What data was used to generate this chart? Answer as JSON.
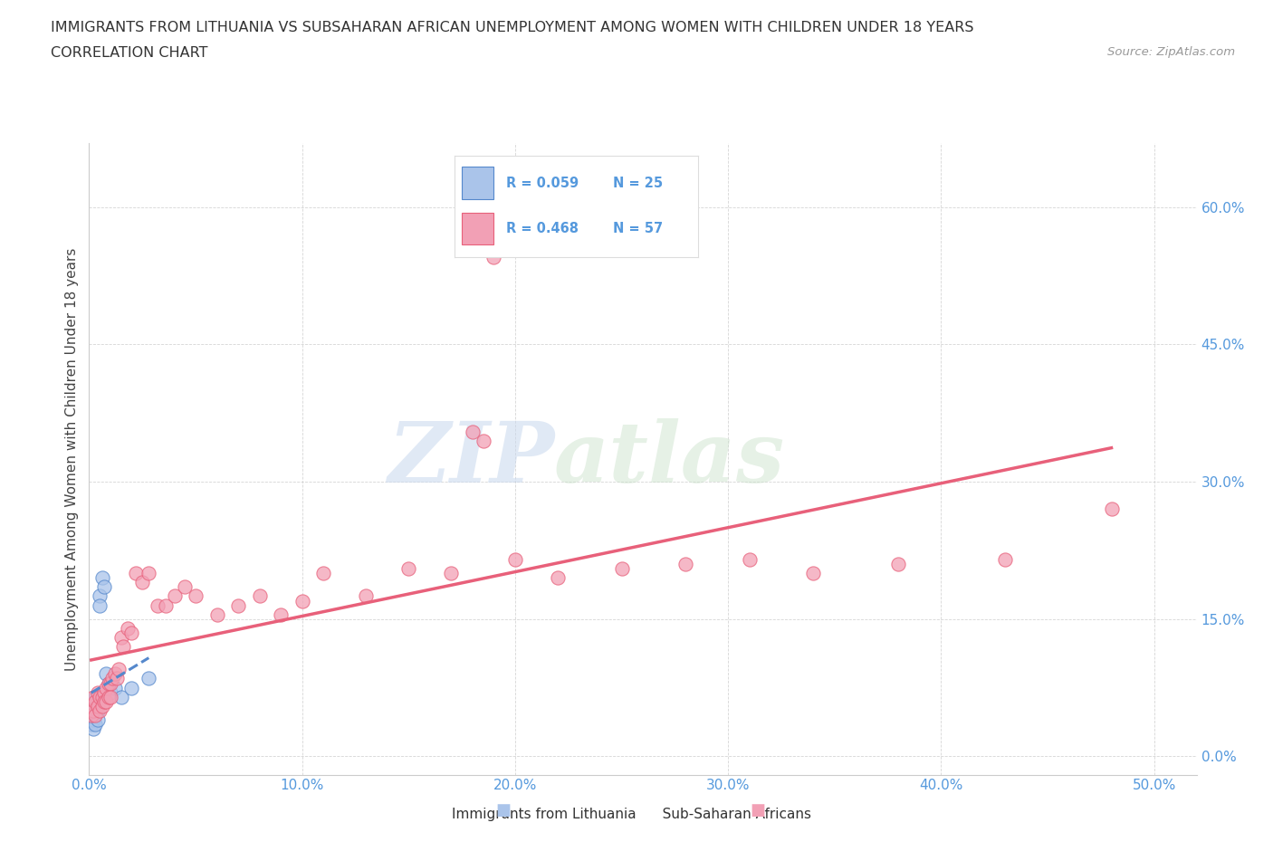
{
  "title": "IMMIGRANTS FROM LITHUANIA VS SUBSAHARAN AFRICAN UNEMPLOYMENT AMONG WOMEN WITH CHILDREN UNDER 18 YEARS",
  "subtitle": "CORRELATION CHART",
  "source": "Source: ZipAtlas.com",
  "ylabel": "Unemployment Among Women with Children Under 18 years",
  "xlim": [
    0.0,
    0.52
  ],
  "ylim": [
    -0.02,
    0.67
  ],
  "xticks": [
    0.0,
    0.1,
    0.2,
    0.3,
    0.4,
    0.5
  ],
  "ytick_positions": [
    0.0,
    0.15,
    0.3,
    0.45,
    0.6
  ],
  "ytick_labels": [
    "0.0%",
    "15.0%",
    "30.0%",
    "45.0%",
    "60.0%"
  ],
  "xtick_labels": [
    "0.0%",
    "10.0%",
    "20.0%",
    "30.0%",
    "40.0%",
    "50.0%"
  ],
  "watermark_zip": "ZIP",
  "watermark_atlas": "atlas",
  "legend_r1": "R = 0.059",
  "legend_n1": "N = 25",
  "legend_r2": "R = 0.468",
  "legend_n2": "N = 57",
  "color_blue": "#aac4ea",
  "color_pink": "#f2a0b5",
  "color_blue_dark": "#5588cc",
  "color_pink_dark": "#e8607a",
  "color_axis": "#5599dd",
  "background_color": "#ffffff",
  "lithuania_x": [
    0.001,
    0.001,
    0.001,
    0.002,
    0.002,
    0.002,
    0.002,
    0.003,
    0.003,
    0.003,
    0.003,
    0.004,
    0.004,
    0.004,
    0.005,
    0.005,
    0.006,
    0.007,
    0.008,
    0.009,
    0.01,
    0.012,
    0.015,
    0.02,
    0.028
  ],
  "lithuania_y": [
    0.055,
    0.045,
    0.035,
    0.06,
    0.05,
    0.04,
    0.03,
    0.065,
    0.055,
    0.045,
    0.035,
    0.06,
    0.05,
    0.04,
    0.175,
    0.165,
    0.195,
    0.185,
    0.09,
    0.08,
    0.07,
    0.075,
    0.065,
    0.075,
    0.085
  ],
  "subsaharan_x": [
    0.001,
    0.001,
    0.002,
    0.002,
    0.003,
    0.003,
    0.004,
    0.004,
    0.005,
    0.005,
    0.006,
    0.006,
    0.007,
    0.007,
    0.008,
    0.008,
    0.009,
    0.009,
    0.01,
    0.01,
    0.011,
    0.012,
    0.013,
    0.014,
    0.015,
    0.016,
    0.018,
    0.02,
    0.022,
    0.025,
    0.028,
    0.032,
    0.036,
    0.04,
    0.045,
    0.05,
    0.06,
    0.07,
    0.08,
    0.09,
    0.1,
    0.11,
    0.13,
    0.15,
    0.17,
    0.2,
    0.22,
    0.25,
    0.28,
    0.31,
    0.34,
    0.38,
    0.43,
    0.48,
    0.18,
    0.185,
    0.19
  ],
  "subsaharan_y": [
    0.055,
    0.045,
    0.065,
    0.05,
    0.06,
    0.045,
    0.07,
    0.055,
    0.065,
    0.05,
    0.065,
    0.055,
    0.07,
    0.06,
    0.075,
    0.06,
    0.08,
    0.065,
    0.08,
    0.065,
    0.085,
    0.09,
    0.085,
    0.095,
    0.13,
    0.12,
    0.14,
    0.135,
    0.2,
    0.19,
    0.2,
    0.165,
    0.165,
    0.175,
    0.185,
    0.175,
    0.155,
    0.165,
    0.175,
    0.155,
    0.17,
    0.2,
    0.175,
    0.205,
    0.2,
    0.215,
    0.195,
    0.205,
    0.21,
    0.215,
    0.2,
    0.21,
    0.215,
    0.27,
    0.355,
    0.345,
    0.545
  ]
}
